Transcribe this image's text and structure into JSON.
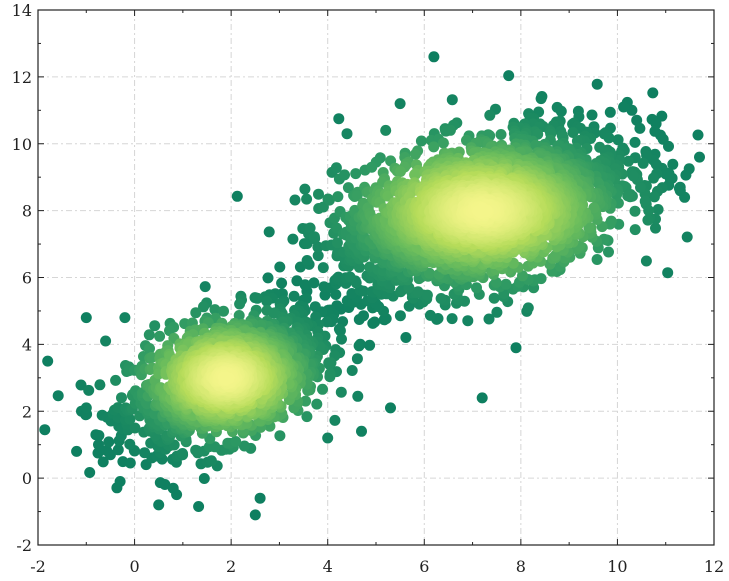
{
  "chart_data": {
    "type": "scatter",
    "title": "",
    "xlabel": "",
    "ylabel": "",
    "xlim": [
      -2,
      12
    ],
    "ylim": [
      -2,
      14
    ],
    "xticks": [
      "-2",
      "0",
      "2",
      "4",
      "6",
      "8",
      "10",
      "12"
    ],
    "yticks": [
      "-2",
      "0",
      "2",
      "4",
      "6",
      "8",
      "10",
      "12",
      "14"
    ],
    "grid": true,
    "legend": "none",
    "colormap": [
      "#0e7f60",
      "#2f9a63",
      "#6bbd5c",
      "#b6dc5a",
      "#f4f58a"
    ],
    "color_encoding": "point density",
    "series": [
      {
        "cluster_center": [
          1.9,
          3.0
        ],
        "cluster_spread": [
          1.0,
          1.0
        ],
        "approx_count": 1500,
        "points": [
          [
            -1.8,
            3.5
          ],
          [
            -1.2,
            0.8
          ],
          [
            -1.0,
            2.1
          ],
          [
            -0.8,
            1.3
          ],
          [
            -0.3,
            -0.1
          ],
          [
            -0.5,
            0.7
          ],
          [
            0.5,
            -0.8
          ],
          [
            0.8,
            -0.3
          ],
          [
            2.5,
            -1.1
          ],
          [
            2.6,
            -0.6
          ],
          [
            -1.0,
            4.8
          ],
          [
            -0.6,
            4.1
          ],
          [
            -0.2,
            4.8
          ],
          [
            3.3,
            2.1
          ],
          [
            4.0,
            1.2
          ],
          [
            4.7,
            1.4
          ],
          [
            5.3,
            2.1
          ]
        ]
      },
      {
        "cluster_center": [
          7.2,
          8.0
        ],
        "cluster_spread": [
          1.5,
          1.2
        ],
        "approx_count": 2500,
        "points": [
          [
            6.2,
            12.6
          ],
          [
            7.2,
            2.4
          ],
          [
            11.7,
            9.6
          ],
          [
            11.3,
            8.7
          ],
          [
            11.0,
            9.1
          ],
          [
            10.8,
            10.6
          ],
          [
            10.3,
            11.0
          ],
          [
            10.4,
            10.7
          ],
          [
            7.9,
            3.9
          ],
          [
            4.4,
            10.3
          ],
          [
            5.5,
            11.2
          ],
          [
            5.2,
            10.4
          ]
        ]
      }
    ]
  }
}
